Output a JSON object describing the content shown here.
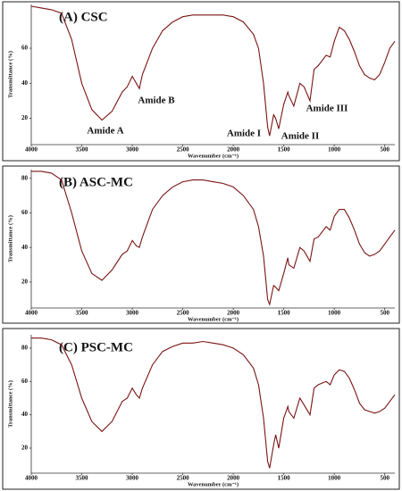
{
  "chart_data": [
    {
      "type": "line",
      "title": "(A) CSC",
      "x_label": "Wavenumber (cm⁻¹)",
      "y_label": "Transmittance (%)",
      "annotations": [
        "Amide A",
        "Amide B",
        "Amide I",
        "Amide II",
        "Amide III"
      ],
      "xlim": [
        4000,
        400
      ],
      "xticks": [
        4000,
        3500,
        3000,
        2500,
        2000,
        1500,
        1000,
        500
      ],
      "ylim": [
        5,
        85
      ],
      "yticks": [
        20,
        40,
        60
      ],
      "x": [
        4000,
        3900,
        3800,
        3700,
        3600,
        3500,
        3400,
        3300,
        3200,
        3100,
        3050,
        3000,
        2960,
        2930,
        2900,
        2800,
        2700,
        2600,
        2500,
        2400,
        2300,
        2200,
        2100,
        2000,
        1900,
        1800,
        1750,
        1700,
        1660,
        1640,
        1600,
        1580,
        1550,
        1500,
        1460,
        1450,
        1400,
        1340,
        1300,
        1240,
        1200,
        1160,
        1080,
        1040,
        1000,
        950,
        900,
        850,
        800,
        750,
        700,
        650,
        600,
        550,
        500,
        450,
        400
      ],
      "series": [
        {
          "color": "#7a1414",
          "values": [
            84,
            83,
            82,
            80,
            65,
            40,
            25,
            19,
            24,
            35,
            38,
            44,
            40,
            37,
            45,
            60,
            70,
            75,
            78,
            79,
            79,
            79,
            79,
            78,
            75,
            68,
            60,
            40,
            15,
            10,
            22,
            20,
            14,
            28,
            35,
            33,
            27,
            40,
            38,
            30,
            48,
            50,
            56,
            55,
            64,
            72,
            70,
            65,
            58,
            50,
            45,
            43,
            42,
            45,
            52,
            60,
            64
          ]
        }
      ]
    },
    {
      "type": "line",
      "title": "(B) ASC-MC",
      "x_label": "Wavenumber (cm⁻¹)",
      "y_label": "Transmittance (%)",
      "xlim": [
        4000,
        400
      ],
      "xticks": [
        4000,
        3500,
        3000,
        2500,
        2000,
        1500,
        1000,
        500
      ],
      "ylim": [
        5,
        85
      ],
      "yticks": [
        20,
        40,
        60,
        80
      ],
      "x": [
        4000,
        3900,
        3800,
        3700,
        3600,
        3500,
        3400,
        3300,
        3200,
        3100,
        3050,
        3000,
        2960,
        2930,
        2900,
        2800,
        2700,
        2600,
        2500,
        2400,
        2300,
        2200,
        2100,
        2000,
        1900,
        1800,
        1750,
        1700,
        1660,
        1640,
        1600,
        1580,
        1550,
        1500,
        1460,
        1450,
        1400,
        1340,
        1300,
        1240,
        1200,
        1160,
        1080,
        1040,
        1000,
        950,
        900,
        850,
        800,
        750,
        700,
        650,
        600,
        550,
        500,
        450,
        400
      ],
      "series": [
        {
          "color": "#7a1414",
          "values": [
            84,
            84,
            83,
            79,
            60,
            38,
            25,
            21,
            27,
            36,
            38,
            44,
            41,
            40,
            46,
            62,
            70,
            75,
            78,
            79,
            79,
            78,
            77,
            75,
            70,
            62,
            52,
            35,
            10,
            7,
            18,
            17,
            15,
            25,
            34,
            30,
            28,
            40,
            38,
            32,
            45,
            46,
            52,
            50,
            58,
            62,
            62,
            57,
            50,
            42,
            37,
            35,
            36,
            38,
            42,
            46,
            50
          ]
        }
      ]
    },
    {
      "type": "line",
      "title": "(C) PSC-MC",
      "x_label": "Wavenumber (cm⁻¹)",
      "y_label": "Transmittance (%)",
      "xlim": [
        4000,
        400
      ],
      "xticks": [
        4000,
        3500,
        3000,
        2500,
        2000,
        1500,
        1000,
        500
      ],
      "ylim": [
        5,
        88
      ],
      "yticks": [
        20,
        40,
        60,
        80
      ],
      "x": [
        4000,
        3900,
        3800,
        3700,
        3600,
        3500,
        3400,
        3300,
        3200,
        3100,
        3050,
        3000,
        2960,
        2930,
        2900,
        2800,
        2700,
        2600,
        2500,
        2400,
        2300,
        2200,
        2100,
        2000,
        1900,
        1800,
        1750,
        1700,
        1660,
        1640,
        1600,
        1580,
        1550,
        1500,
        1460,
        1450,
        1400,
        1340,
        1300,
        1240,
        1200,
        1160,
        1080,
        1040,
        1000,
        950,
        900,
        850,
        800,
        750,
        700,
        650,
        600,
        550,
        500,
        450,
        400
      ],
      "series": [
        {
          "color": "#7a1414",
          "values": [
            86,
            86,
            85,
            82,
            70,
            50,
            36,
            30,
            36,
            48,
            50,
            56,
            52,
            50,
            56,
            70,
            78,
            81,
            83,
            83,
            84,
            83,
            82,
            80,
            76,
            68,
            58,
            38,
            12,
            8,
            22,
            28,
            20,
            38,
            45,
            42,
            38,
            50,
            46,
            40,
            56,
            58,
            60,
            58,
            64,
            67,
            66,
            62,
            55,
            47,
            43,
            42,
            41,
            42,
            44,
            48,
            52
          ]
        }
      ]
    }
  ]
}
